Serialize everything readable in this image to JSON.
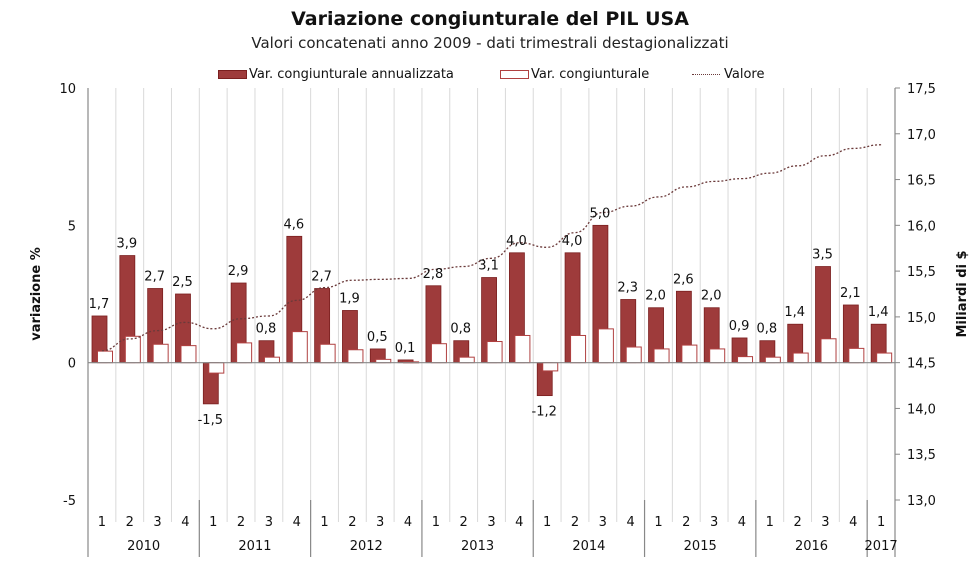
{
  "chart_data": {
    "type": "bar",
    "title": "Variazione congiunturale del PIL USA",
    "subtitle": "Valori concatenati anno 2009 - dati trimestrali destagionalizzati",
    "ylabel": "variazione %",
    "y2label": "Miliardi di $",
    "ylim": [
      -5,
      10
    ],
    "y2lim": [
      13.0,
      17.5
    ],
    "yticks": [
      "-5",
      "0",
      "5",
      "10"
    ],
    "yticks_values": [
      -5,
      0,
      5,
      10
    ],
    "y2ticks": [
      "13,0",
      "13,5",
      "14,0",
      "14,5",
      "15,0",
      "15,5",
      "16,0",
      "16,5",
      "17,0",
      "17,5"
    ],
    "y2ticks_values": [
      13.0,
      13.5,
      14.0,
      14.5,
      15.0,
      15.5,
      16.0,
      16.5,
      17.0,
      17.5
    ],
    "grid": "vertical",
    "legend_position": "top",
    "years": [
      {
        "label": "2010",
        "quarters": 4
      },
      {
        "label": "2011",
        "quarters": 4
      },
      {
        "label": "2012",
        "quarters": 4
      },
      {
        "label": "2013",
        "quarters": 4
      },
      {
        "label": "2014",
        "quarters": 4
      },
      {
        "label": "2015",
        "quarters": 4
      },
      {
        "label": "2016",
        "quarters": 4
      },
      {
        "label": "2017",
        "quarters": 1
      }
    ],
    "categories": [
      "1",
      "2",
      "3",
      "4",
      "1",
      "2",
      "3",
      "4",
      "1",
      "2",
      "3",
      "4",
      "1",
      "2",
      "3",
      "4",
      "1",
      "2",
      "3",
      "4",
      "1",
      "2",
      "3",
      "4",
      "1",
      "2",
      "3",
      "4",
      "1"
    ],
    "series": [
      {
        "name": "Var. congiunturale annualizzata",
        "type": "bar",
        "axis": "left",
        "color": "#9e3b3b",
        "values": [
          1.7,
          3.9,
          2.7,
          2.5,
          -1.5,
          2.9,
          0.8,
          4.6,
          2.7,
          1.9,
          0.5,
          0.1,
          2.8,
          0.8,
          3.1,
          4.0,
          -1.2,
          4.0,
          5.0,
          2.3,
          2.0,
          2.6,
          2.0,
          0.9,
          0.8,
          1.4,
          3.5,
          2.1,
          1.4
        ],
        "labels": [
          "1,7",
          "3,9",
          "2,7",
          "2,5",
          "-1,5",
          "2,9",
          "0,8",
          "4,6",
          "2,7",
          "1,9",
          "0,5",
          "0,1",
          "2,8",
          "0,8",
          "3,1",
          "4,0",
          "-1,2",
          "4,0",
          "5,0",
          "2,3",
          "2,0",
          "2,6",
          "2,0",
          "0,9",
          "0,8",
          "1,4",
          "3,5",
          "2,1",
          "1,4"
        ]
      },
      {
        "name": "Var. congiunturale",
        "type": "bar",
        "axis": "left",
        "color": "#ffffff",
        "values": [
          0.42,
          0.96,
          0.67,
          0.62,
          -0.38,
          0.72,
          0.2,
          1.13,
          0.67,
          0.47,
          0.12,
          0.03,
          0.69,
          0.2,
          0.77,
          0.99,
          -0.3,
          0.99,
          1.23,
          0.57,
          0.5,
          0.64,
          0.5,
          0.22,
          0.2,
          0.35,
          0.87,
          0.52,
          0.35
        ]
      },
      {
        "name": "Valore",
        "type": "line",
        "axis": "right",
        "color": "#6b3a3a",
        "values": [
          14.63,
          14.76,
          14.85,
          14.94,
          14.87,
          14.98,
          15.01,
          15.18,
          15.32,
          15.4,
          15.41,
          15.42,
          15.52,
          15.55,
          15.64,
          15.81,
          15.76,
          15.92,
          16.14,
          16.21,
          16.31,
          16.42,
          16.48,
          16.51,
          16.57,
          16.65,
          16.76,
          16.84,
          16.88
        ]
      }
    ]
  }
}
